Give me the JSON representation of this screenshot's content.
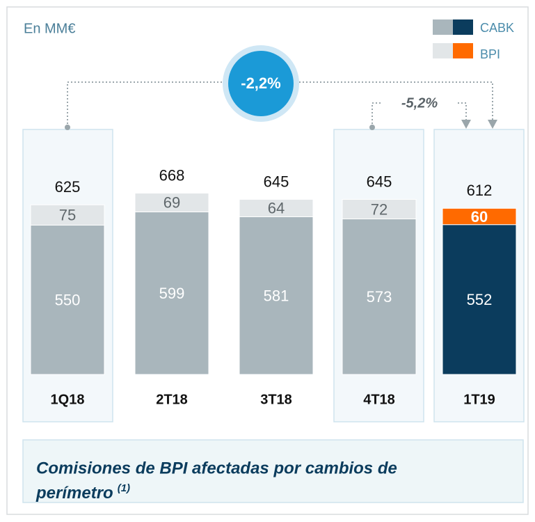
{
  "chart_data": {
    "type": "stacked_bar",
    "unit_label": "En MM€",
    "categories": [
      "1Q18",
      "2T18",
      "3T18",
      "4T18",
      "1T19"
    ],
    "series": [
      {
        "name": "CABK",
        "values": [
          550,
          599,
          581,
          573,
          552
        ],
        "colors": [
          "#a9b6bc",
          "#a9b6bc",
          "#a9b6bc",
          "#a9b6bc",
          "#0b3c5d"
        ]
      },
      {
        "name": "BPI",
        "values": [
          75,
          69,
          64,
          72,
          60
        ],
        "colors": [
          "#e2e6e8",
          "#e2e6e8",
          "#e2e6e8",
          "#e2e6e8",
          "#ff6a00"
        ]
      }
    ],
    "totals": [
      625,
      668,
      645,
      645,
      612
    ],
    "ylim": [
      0,
      700
    ],
    "annotations": [
      "-2,2%",
      "-5,2%"
    ],
    "footnote": [
      "Comisiones de BPI afectadas por cambios de",
      "perímetro"
    ],
    "footnote_ref": "(1)"
  }
}
